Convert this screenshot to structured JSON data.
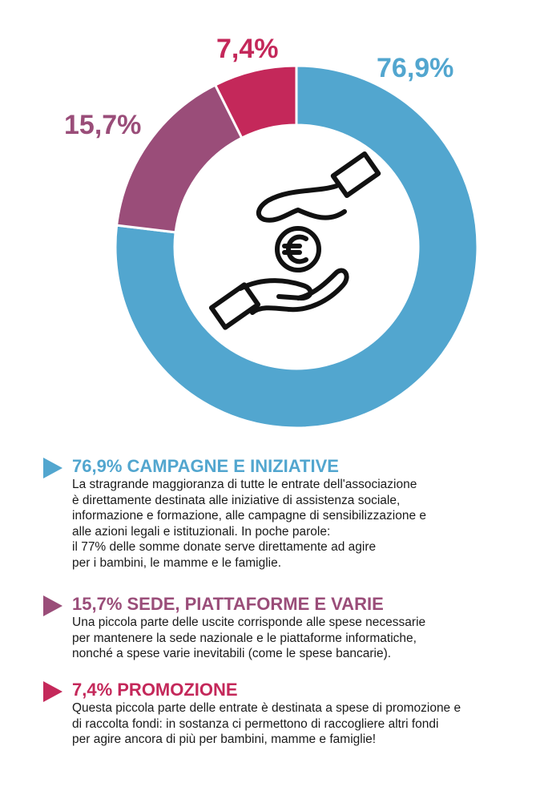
{
  "chart_data": {
    "type": "donut",
    "segments": [
      {
        "label": "76,9%",
        "value": 76.9,
        "color": "#52a6cf"
      },
      {
        "label": "15,7%",
        "value": 15.7,
        "color": "#9a4d79"
      },
      {
        "label": "7,4%",
        "value": 7.4,
        "color": "#c4285a"
      }
    ]
  },
  "center_icon": "hands-euro-icon",
  "legend": [
    {
      "color": "#52a6cf",
      "heading": "76,9% CAMPAGNE E INIZIATIVE",
      "text": "La stragrande maggioranza di tutte le entrate dell'associazione\nè direttamente destinata alle iniziative di assistenza sociale,\ninformazione e formazione, alle campagne di sensibilizzazione e\nalle azioni legali e istituzionali. In poche parole:\nil 77% delle somme donate serve direttamente ad agire\nper i bambini, le mamme e le famiglie."
    },
    {
      "color": "#9a4d79",
      "heading": "15,7% SEDE, PIATTAFORME E VARIE",
      "text": "Una piccola parte delle uscite corrisponde alle spese necessarie\nper mantenere la sede nazionale e le piattaforme informatiche,\nnonché a spese varie inevitabili (come le spese bancarie)."
    },
    {
      "color": "#c4285a",
      "heading": "7,4% PROMOZIONE",
      "text": "Questa piccola parte delle entrate è destinata a spese di promozione e\ndi raccolta fondi: in sostanza ci permettono di raccogliere altri fondi\nper agire ancora di più per bambini, mamme e famiglie!"
    }
  ]
}
